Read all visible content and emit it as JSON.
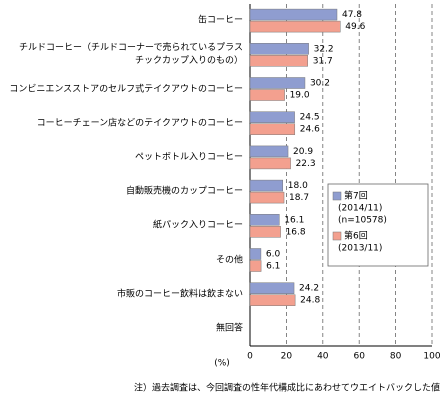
{
  "chart_data": {
    "type": "hbar",
    "categories": [
      "缶コーヒー",
      "チルドコーヒー（チルドコーナーで売られているプラス\nチックカップ入りのもの）",
      "コンビニエンスストアのセルフ式テイクアウトのコーヒー",
      "コーヒーチェーン店などのテイクアウトのコーヒー",
      "ペットボトル入りコーヒー",
      "自動販売機のカップコーヒー",
      "紙パック入りコーヒー",
      "その他",
      "市販のコーヒー飲料は飲まない",
      "無回答"
    ],
    "series": [
      {
        "name": "第7回",
        "period": "(2014/11)",
        "sample": "(n=10578)",
        "color": "#8f9dd0",
        "values": [
          47.8,
          32.2,
          30.2,
          24.5,
          20.9,
          18.0,
          16.1,
          6.0,
          24.2,
          null
        ],
        "value_labels": [
          "47.8",
          "32.2",
          "30.2",
          "24.5",
          "20.9",
          "18.0",
          "16.1",
          "6.0",
          "24.2",
          null
        ]
      },
      {
        "name": "第6回",
        "period": "(2013/11)",
        "color": "#f3a08f",
        "values": [
          49.6,
          31.7,
          19.0,
          24.6,
          22.3,
          18.7,
          16.8,
          6.1,
          24.8,
          null
        ],
        "value_labels": [
          "49.6",
          "31.7",
          "19.0",
          "24.6",
          "22.3",
          "18.7",
          "16.8",
          "6.1",
          "24.8",
          null
        ]
      }
    ],
    "xlabel": "(%)",
    "xlim": [
      0,
      100
    ],
    "xticks": [
      0,
      20,
      40,
      60,
      80,
      100
    ],
    "grid": true,
    "note": "注）過去調査は、今回調査の性年代構成比にあわせてウエイトバックした値"
  }
}
